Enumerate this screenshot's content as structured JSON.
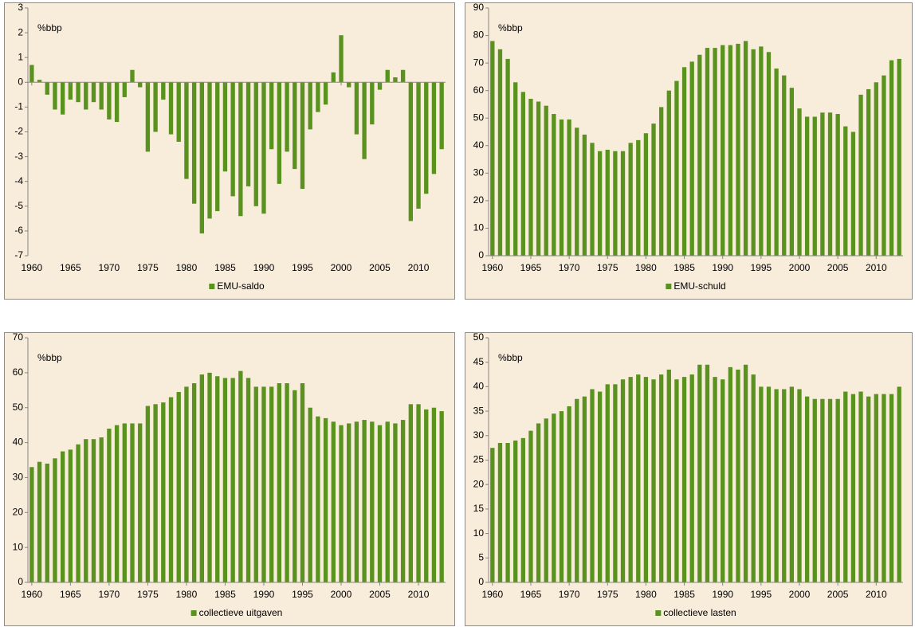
{
  "chart_data": [
    {
      "type": "bar",
      "annotation": "%bbp",
      "x": [
        1960,
        1961,
        1962,
        1963,
        1964,
        1965,
        1966,
        1967,
        1968,
        1969,
        1970,
        1971,
        1972,
        1973,
        1974,
        1975,
        1976,
        1977,
        1978,
        1979,
        1980,
        1981,
        1982,
        1983,
        1984,
        1985,
        1986,
        1987,
        1988,
        1989,
        1990,
        1991,
        1992,
        1993,
        1994,
        1995,
        1996,
        1997,
        1998,
        1999,
        2000,
        2001,
        2002,
        2003,
        2004,
        2005,
        2006,
        2007,
        2008,
        2009,
        2010,
        2011,
        2012,
        2013
      ],
      "series": [
        {
          "name": "EMU-saldo",
          "color": "#5a921f",
          "values": [
            0.7,
            0.1,
            -0.5,
            -1.1,
            -1.3,
            -0.7,
            -0.8,
            -1.1,
            -0.8,
            -1.1,
            -1.5,
            -1.6,
            -0.6,
            0.5,
            -0.2,
            -2.8,
            -2.0,
            -0.7,
            -2.1,
            -2.4,
            -3.9,
            -4.9,
            -6.1,
            -5.5,
            -5.2,
            -3.6,
            -4.6,
            -5.4,
            -4.2,
            -5.0,
            -5.3,
            -2.7,
            -4.1,
            -2.8,
            -3.5,
            -4.3,
            -1.9,
            -1.2,
            -0.9,
            0.4,
            1.9,
            -0.2,
            -2.1,
            -3.1,
            -1.7,
            -0.3,
            0.5,
            0.2,
            0.5,
            -5.6,
            -5.1,
            -4.5,
            -3.7,
            -2.7
          ]
        }
      ],
      "xlim": [
        1959.5,
        2013.5
      ],
      "xticks": [
        1960,
        1965,
        1970,
        1975,
        1980,
        1985,
        1990,
        1995,
        2000,
        2005,
        2010
      ],
      "ylim": [
        -7,
        3
      ],
      "yticks": [
        -7,
        -6,
        -5,
        -4,
        -3,
        -2,
        -1,
        0,
        1,
        2,
        3
      ]
    },
    {
      "type": "bar",
      "annotation": "%bbp",
      "x": [
        1960,
        1961,
        1962,
        1963,
        1964,
        1965,
        1966,
        1967,
        1968,
        1969,
        1970,
        1971,
        1972,
        1973,
        1974,
        1975,
        1976,
        1977,
        1978,
        1979,
        1980,
        1981,
        1982,
        1983,
        1984,
        1985,
        1986,
        1987,
        1988,
        1989,
        1990,
        1991,
        1992,
        1993,
        1994,
        1995,
        1996,
        1997,
        1998,
        1999,
        2000,
        2001,
        2002,
        2003,
        2004,
        2005,
        2006,
        2007,
        2008,
        2009,
        2010,
        2011,
        2012,
        2013
      ],
      "series": [
        {
          "name": "EMU-schuld",
          "color": "#5a921f",
          "values": [
            78,
            75,
            71.5,
            63,
            59.5,
            57,
            56,
            54.5,
            51.5,
            49.5,
            49.5,
            46.5,
            44,
            41,
            38,
            38.5,
            38,
            38,
            41,
            42,
            44.5,
            48,
            54,
            60,
            63.5,
            68.5,
            70.5,
            73,
            75.5,
            75.5,
            76.5,
            76.5,
            77,
            78,
            75,
            76,
            74,
            68,
            65.5,
            61,
            53.5,
            50.5,
            50.5,
            52,
            52,
            51.5,
            47,
            45,
            58.5,
            60.5,
            63,
            65.5,
            71,
            71.5
          ]
        }
      ],
      "xlim": [
        1959.5,
        2013.5
      ],
      "xticks": [
        1960,
        1965,
        1970,
        1975,
        1980,
        1985,
        1990,
        1995,
        2000,
        2005,
        2010
      ],
      "ylim": [
        0,
        90
      ],
      "yticks": [
        0,
        10,
        20,
        30,
        40,
        50,
        60,
        70,
        80,
        90
      ]
    },
    {
      "type": "bar",
      "annotation": "%bbp",
      "x": [
        1960,
        1961,
        1962,
        1963,
        1964,
        1965,
        1966,
        1967,
        1968,
        1969,
        1970,
        1971,
        1972,
        1973,
        1974,
        1975,
        1976,
        1977,
        1978,
        1979,
        1980,
        1981,
        1982,
        1983,
        1984,
        1985,
        1986,
        1987,
        1988,
        1989,
        1990,
        1991,
        1992,
        1993,
        1994,
        1995,
        1996,
        1997,
        1998,
        1999,
        2000,
        2001,
        2002,
        2003,
        2004,
        2005,
        2006,
        2007,
        2008,
        2009,
        2010,
        2011,
        2012,
        2013
      ],
      "series": [
        {
          "name": "collectieve uitgaven",
          "color": "#5a921f",
          "values": [
            33,
            34.5,
            34,
            35.5,
            37.5,
            38,
            39.5,
            41,
            41,
            41.5,
            44,
            45,
            45.5,
            45.5,
            45.5,
            50.5,
            51,
            51.5,
            53,
            54.5,
            56,
            57,
            59.5,
            60,
            59,
            58.5,
            58.5,
            60.5,
            58.5,
            56,
            56,
            56,
            57,
            57,
            55,
            57,
            50,
            47.5,
            47,
            46,
            45,
            45.5,
            46,
            46.5,
            46,
            45,
            46,
            45.5,
            46.5,
            51,
            51,
            49.5,
            50,
            49
          ]
        }
      ],
      "xlim": [
        1959.5,
        2013.5
      ],
      "xticks": [
        1960,
        1965,
        1970,
        1975,
        1980,
        1985,
        1990,
        1995,
        2000,
        2005,
        2010
      ],
      "ylim": [
        0,
        70
      ],
      "yticks": [
        0,
        10,
        20,
        30,
        40,
        50,
        60,
        70
      ]
    },
    {
      "type": "bar",
      "annotation": "%bbp",
      "x": [
        1960,
        1961,
        1962,
        1963,
        1964,
        1965,
        1966,
        1967,
        1968,
        1969,
        1970,
        1971,
        1972,
        1973,
        1974,
        1975,
        1976,
        1977,
        1978,
        1979,
        1980,
        1981,
        1982,
        1983,
        1984,
        1985,
        1986,
        1987,
        1988,
        1989,
        1990,
        1991,
        1992,
        1993,
        1994,
        1995,
        1996,
        1997,
        1998,
        1999,
        2000,
        2001,
        2002,
        2003,
        2004,
        2005,
        2006,
        2007,
        2008,
        2009,
        2010,
        2011,
        2012,
        2013
      ],
      "series": [
        {
          "name": "collectieve lasten",
          "color": "#5a921f",
          "values": [
            27.5,
            28.5,
            28.5,
            29,
            29.5,
            31,
            32.5,
            33.5,
            34.5,
            35,
            36,
            37.5,
            38,
            39.5,
            39,
            40.5,
            40.5,
            41.5,
            42,
            42.5,
            42,
            41.5,
            42.5,
            43.5,
            41.5,
            42,
            42.5,
            44.5,
            44.5,
            42,
            41.5,
            44,
            43.5,
            44.5,
            42.5,
            40,
            40,
            39.5,
            39.5,
            40,
            39.5,
            38,
            37.5,
            37.5,
            37.5,
            37.5,
            39,
            38.5,
            39,
            38,
            38.5,
            38.5,
            38.5,
            40
          ]
        }
      ],
      "xlim": [
        1959.5,
        2013.5
      ],
      "xticks": [
        1960,
        1965,
        1970,
        1975,
        1980,
        1985,
        1990,
        1995,
        2000,
        2005,
        2010
      ],
      "ylim": [
        0,
        50
      ],
      "yticks": [
        0,
        5,
        10,
        15,
        20,
        25,
        30,
        35,
        40,
        45,
        50
      ]
    }
  ]
}
